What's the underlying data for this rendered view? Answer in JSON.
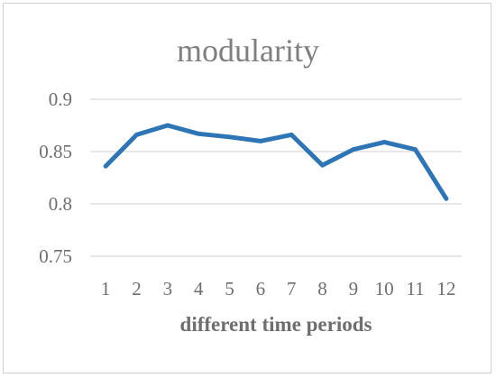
{
  "chart_data": {
    "type": "line",
    "title": "modularity",
    "xlabel": "different time periods",
    "ylabel": "",
    "categories": [
      "1",
      "2",
      "3",
      "4",
      "5",
      "6",
      "7",
      "8",
      "9",
      "10",
      "11",
      "12"
    ],
    "series": [
      {
        "values": [
          0.836,
          0.866,
          0.875,
          0.867,
          0.864,
          0.86,
          0.866,
          0.837,
          0.852,
          0.859,
          0.852,
          0.805
        ],
        "color": "#2e75b6"
      }
    ],
    "y_ticks": [
      "0.75",
      "0.8",
      "0.85",
      "0.9"
    ],
    "ylim": [
      0.75,
      0.9
    ],
    "grid": true,
    "legend": "none"
  }
}
